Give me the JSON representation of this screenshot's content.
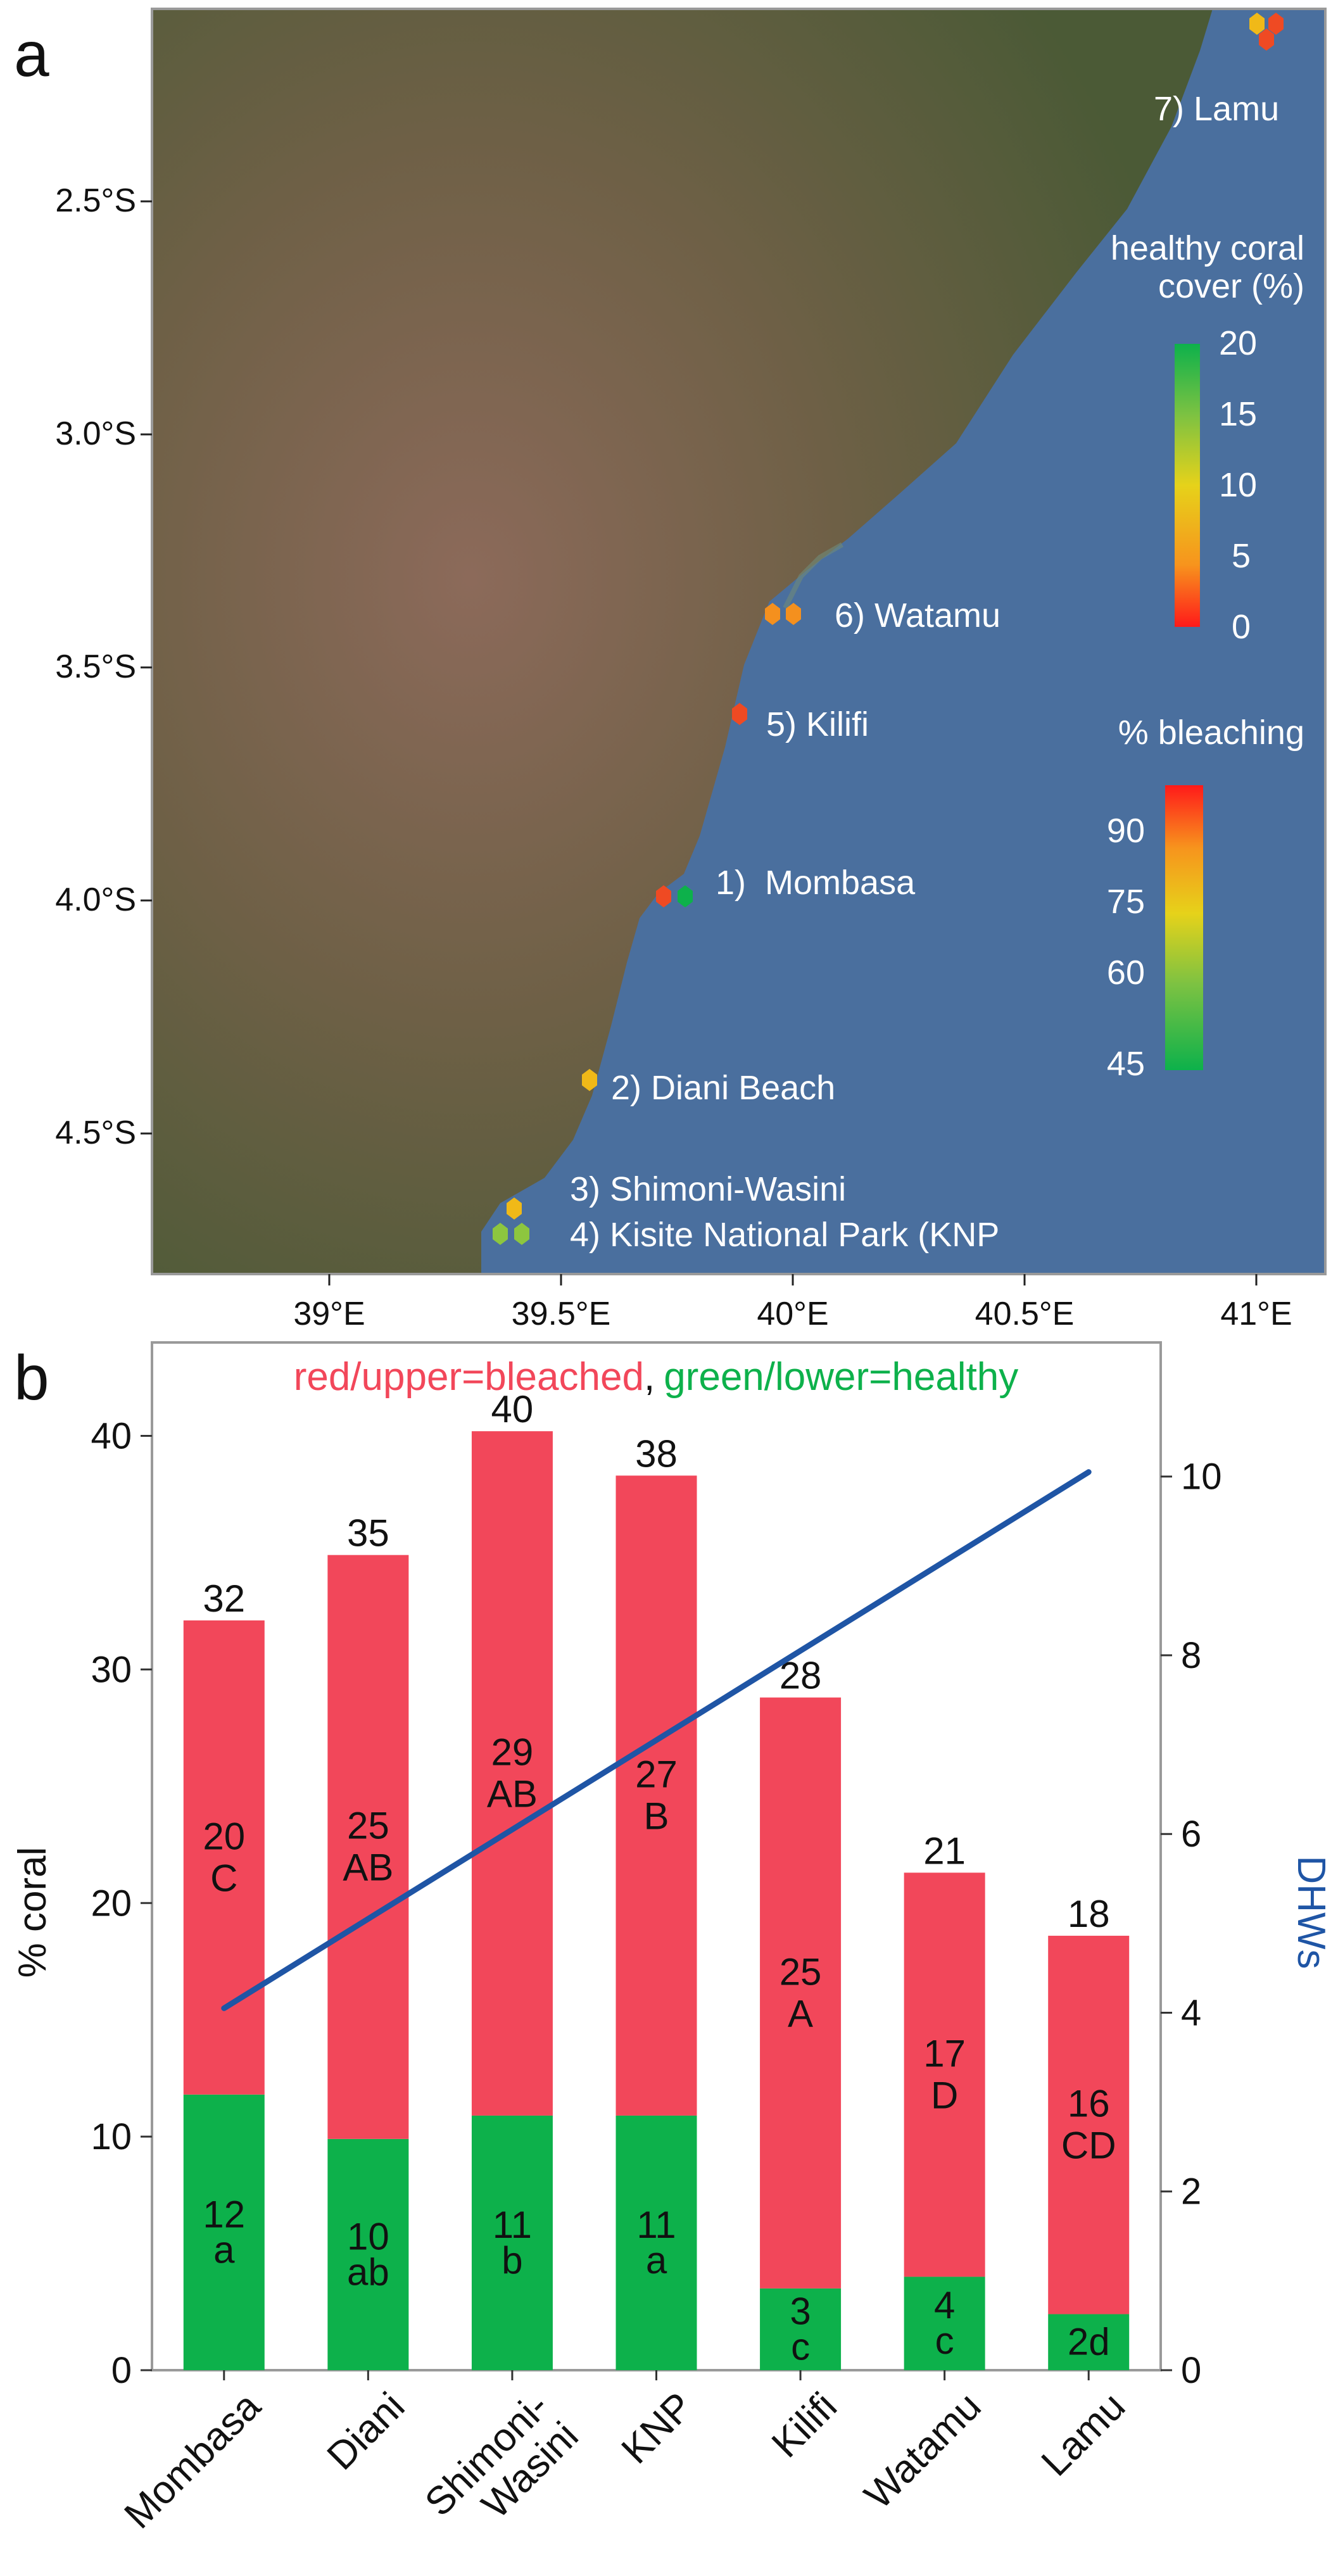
{
  "colors": {
    "bleached": "#f2475a",
    "healthy": "#0db14b",
    "dhw_line": "#1f55a5",
    "sea": "#4a6f9e",
    "marker_orange": "#f4901e",
    "marker_red": "#ef4a23",
    "marker_yellow": "#f0b918",
    "marker_lime": "#8dc63f",
    "marker_green": "#0db14b"
  },
  "panel_a": {
    "label": "a",
    "lat_ticks": [
      "2.5°S",
      "3.0°S",
      "3.5°S",
      "4.0°S",
      "4.5°S"
    ],
    "lon_ticks": [
      "39°E",
      "39.5°E",
      "40°E",
      "40.5°E",
      "41°E"
    ],
    "sites": [
      "7) Lamu",
      "6) Watamu",
      "5) Kilifi",
      "1)  Mombasa",
      "2) Diani Beach",
      "3) Shimoni-Wasini",
      "4) Kisite National Park (KNP"
    ],
    "legend_cover": {
      "title_line1": "healthy coral",
      "title_line2": "cover (%)",
      "ticks": [
        "20",
        "15",
        "10",
        "5",
        "0"
      ]
    },
    "legend_bleaching": {
      "title": "% bleaching",
      "ticks": [
        "90",
        "75",
        "60",
        "45"
      ]
    }
  },
  "panel_b": {
    "label": "b",
    "legend_bleached": "red/upper=bleached",
    "legend_sep": ",",
    "legend_healthy": "green/lower=healthy"
  },
  "chart_data": {
    "type": "bar",
    "stacked": true,
    "categories": [
      "Mombasa",
      "Diani",
      "Shimoni-Wasini",
      "KNP",
      "Kilifi",
      "Watamu",
      "Lamu"
    ],
    "category_lines": [
      [
        "Mombasa"
      ],
      [
        "Diani"
      ],
      [
        "Shimoni-",
        "Wasini"
      ],
      [
        "KNP"
      ],
      [
        "Kilifi"
      ],
      [
        "Watamu"
      ],
      [
        "Lamu"
      ]
    ],
    "series": [
      {
        "name": "healthy",
        "values": [
          11.8,
          9.9,
          10.9,
          10.9,
          3.5,
          4.0,
          2.4
        ],
        "labels": [
          [
            "12",
            "a"
          ],
          [
            "10",
            "ab"
          ],
          [
            "11",
            "b"
          ],
          [
            "11",
            "a"
          ],
          [
            "3",
            "c"
          ],
          [
            "4",
            "c"
          ],
          [
            "2d"
          ]
        ]
      },
      {
        "name": "bleached",
        "values": [
          20.3,
          25.0,
          29.3,
          27.4,
          25.3,
          17.3,
          16.2
        ],
        "labels": [
          [
            "20",
            "C"
          ],
          [
            "25",
            "AB"
          ],
          [
            "29",
            "AB"
          ],
          [
            "27",
            "B"
          ],
          [
            "25",
            "A"
          ],
          [
            "17",
            "D"
          ],
          [
            "16",
            "CD"
          ]
        ]
      }
    ],
    "totals": [
      "32",
      "35",
      "40",
      "38",
      "28",
      "21",
      "18"
    ],
    "line": {
      "name": "DHWs",
      "axis": "right",
      "x_from": "Mombasa",
      "x_to": "Lamu",
      "values": [
        4.05,
        10.05
      ]
    },
    "ylabel": "% coral",
    "ylim": [
      0,
      44
    ],
    "yticks": [
      0,
      10,
      20,
      30,
      40
    ],
    "y2label": "DHWs",
    "y2lim": [
      0,
      11.5
    ],
    "y2ticks": [
      0,
      2,
      4,
      6,
      8,
      10
    ]
  }
}
